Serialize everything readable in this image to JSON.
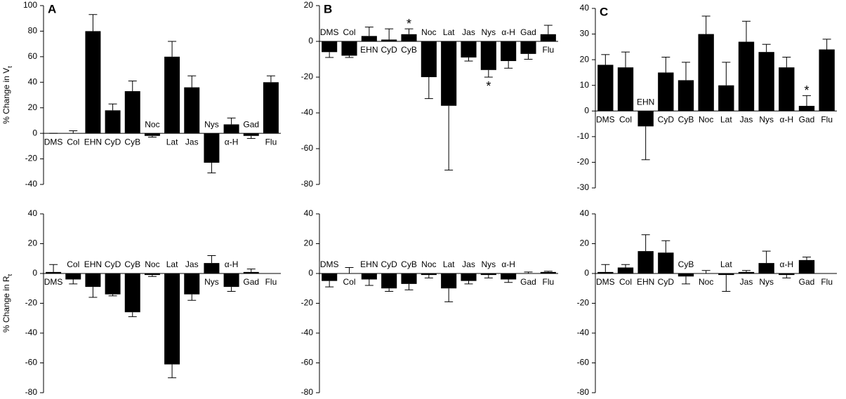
{
  "chart_data": [
    {
      "type": "bar",
      "panel_label": "A",
      "ylabel": "% Change in V",
      "ylabel_sub": "t",
      "color": "#000000",
      "categories": [
        "DMS",
        "Col",
        "EHN",
        "CyD",
        "CyB",
        "Noc",
        "Lat",
        "Jas",
        "Nys",
        "α-H",
        "Gad",
        "Flu"
      ],
      "values": [
        0,
        0,
        80,
        18,
        33,
        -2,
        60,
        36,
        -23,
        7,
        -2,
        40
      ],
      "errors": [
        0,
        2,
        13,
        5,
        8,
        1,
        12,
        9,
        8,
        5,
        2,
        5
      ],
      "ylim": [
        -40,
        100
      ],
      "yticks": [
        -40,
        -20,
        0,
        20,
        40,
        60,
        80,
        100
      ]
    },
    {
      "type": "bar",
      "panel_label": "B",
      "color": "#000000",
      "categories": [
        "DMS",
        "Col",
        "EHN",
        "CyD",
        "CyB",
        "Noc",
        "Lat",
        "Jas",
        "Nys",
        "α-H",
        "Gad",
        "Flu"
      ],
      "values": [
        -6,
        -8,
        3,
        1,
        4,
        -20,
        -36,
        -9,
        -16,
        -11,
        -7,
        4
      ],
      "errors": [
        3,
        1,
        5,
        6,
        3,
        12,
        36,
        2,
        4,
        4,
        3,
        5
      ],
      "annotations": [
        {
          "index": 4,
          "text": "*"
        },
        {
          "index": 8,
          "text": "*"
        }
      ],
      "ylim": [
        -80,
        20
      ],
      "yticks": [
        -80,
        -60,
        -40,
        -20,
        0,
        20
      ]
    },
    {
      "type": "bar",
      "panel_label": "C",
      "color": "#000000",
      "categories": [
        "DMS",
        "Col",
        "EHN",
        "CyD",
        "CyB",
        "Noc",
        "Lat",
        "Jas",
        "Nys",
        "α-H",
        "Gad",
        "Flu"
      ],
      "values": [
        18,
        17,
        -6,
        15,
        12,
        30,
        10,
        27,
        23,
        17,
        2,
        24
      ],
      "errors": [
        4,
        6,
        13,
        6,
        7,
        7,
        9,
        8,
        3,
        4,
        4,
        4
      ],
      "annotations": [
        {
          "index": 10,
          "text": "*"
        }
      ],
      "ylim": [
        -30,
        40
      ],
      "yticks": [
        -30,
        -20,
        -10,
        0,
        10,
        20,
        30,
        40
      ]
    },
    {
      "type": "bar",
      "ylabel": "% Change in R",
      "ylabel_sub": "t",
      "color": "#000000",
      "categories": [
        "DMS",
        "Col",
        "EHN",
        "CyD",
        "CyB",
        "Noc",
        "Lat",
        "Jas",
        "Nys",
        "α-H",
        "Gad",
        "Flu"
      ],
      "values": [
        1,
        -4,
        -9,
        -14,
        -26,
        -1,
        -61,
        -14,
        7,
        -9,
        1,
        0
      ],
      "errors": [
        5,
        3,
        7,
        1,
        3,
        1,
        9,
        4,
        5,
        3,
        2,
        0
      ],
      "ylim": [
        -80,
        40
      ],
      "yticks": [
        -80,
        -60,
        -40,
        -20,
        0,
        20,
        40
      ]
    },
    {
      "type": "bar",
      "color": "#000000",
      "categories": [
        "DMS",
        "Col",
        "EHN",
        "CyD",
        "CyB",
        "Noc",
        "Lat",
        "Jas",
        "Nys",
        "α-H",
        "Gad",
        "Flu"
      ],
      "values": [
        -5,
        0,
        -4,
        -10,
        -7,
        -1,
        -10,
        -5,
        -1,
        -4,
        0,
        1
      ],
      "errors": [
        4,
        4,
        4,
        2,
        4,
        2,
        9,
        2,
        2,
        2,
        1,
        0.5
      ],
      "ylim": [
        -80,
        40
      ],
      "yticks": [
        -80,
        -60,
        -40,
        -20,
        0,
        20,
        40
      ]
    },
    {
      "type": "bar",
      "color": "#000000",
      "categories": [
        "DMS",
        "Col",
        "EHN",
        "CyD",
        "CyB",
        "Noc",
        "Lat",
        "Jas",
        "Nys",
        "α-H",
        "Gad",
        "Flu"
      ],
      "values": [
        1,
        4,
        15,
        14,
        -2,
        0,
        -1,
        1,
        7,
        -1,
        9,
        0
      ],
      "errors": [
        5,
        2,
        11,
        8,
        5,
        2,
        11,
        1,
        8,
        2,
        2,
        0
      ],
      "ylim": [
        -80,
        40
      ],
      "yticks": [
        -80,
        -60,
        -40,
        -20,
        0,
        20,
        40
      ]
    }
  ]
}
